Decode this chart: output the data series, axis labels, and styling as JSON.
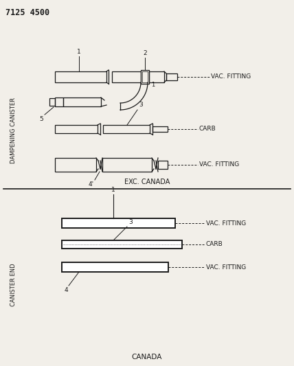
{
  "title": "7125 4500",
  "bg_color": "#f2efe9",
  "line_color": "#1a1a1a",
  "text_color": "#1a1a1a",
  "section1_label": "DAMPENING CANISTER",
  "section2_label": "CANISTER END",
  "exc_canada": "EXC. CANADA",
  "canada": "CANADA",
  "vac_fitting": "VAC. FITTING",
  "carb": "CARB"
}
